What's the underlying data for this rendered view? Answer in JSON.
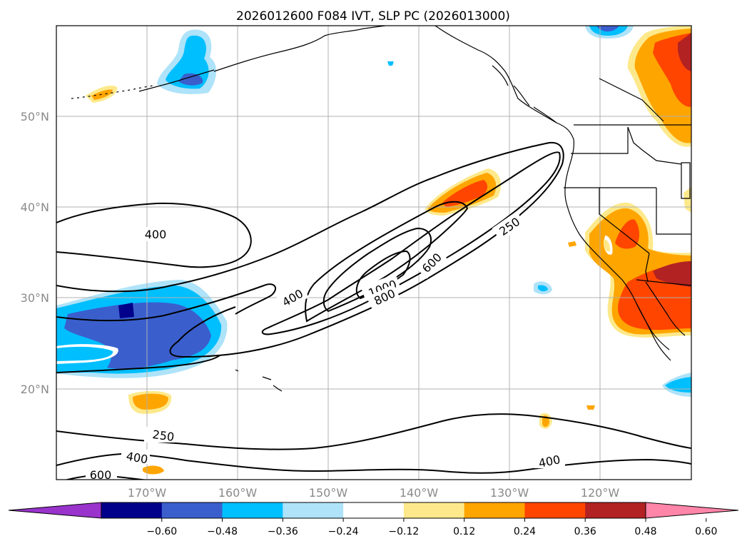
{
  "title": "2026012600 F084 IVT, SLP PC (2026013000)",
  "map": {
    "lat_labels": [
      "50°N",
      "40°N",
      "30°N",
      "20°N"
    ],
    "lon_labels": [
      "170°W",
      "160°W",
      "150°W",
      "140°W",
      "130°W",
      "120°W"
    ],
    "contour_labels": [
      "400",
      "250",
      "400",
      "1000",
      "800",
      "600",
      "250",
      "400",
      "400",
      "600"
    ]
  },
  "chart_data": {
    "type": "map-contour",
    "title": "2026012600 F084 IVT, SLP PC (2026013000)",
    "filled_field": "SLP PC (anomaly, shaded)",
    "contour_field": "IVT",
    "contour_levels": [
      250,
      400,
      600,
      800,
      1000
    ],
    "lat_ticks": [
      50,
      40,
      30,
      20
    ],
    "lon_ticks": [
      -170,
      -160,
      -150,
      -140,
      -130,
      -120
    ],
    "colorbar": {
      "ticks": [
        "-0.60",
        "-0.48",
        "-0.36",
        "-0.24",
        "-0.12",
        "0.12",
        "0.24",
        "0.36",
        "0.48",
        "0.60"
      ],
      "colors": [
        "#9933cc",
        "#00008b",
        "#3a5fcd",
        "#00bfff",
        "#aee3f9",
        "#ffffff",
        "#fde98b",
        "#ffa500",
        "#ff4500",
        "#b22222",
        "#ff85a9"
      ]
    }
  }
}
